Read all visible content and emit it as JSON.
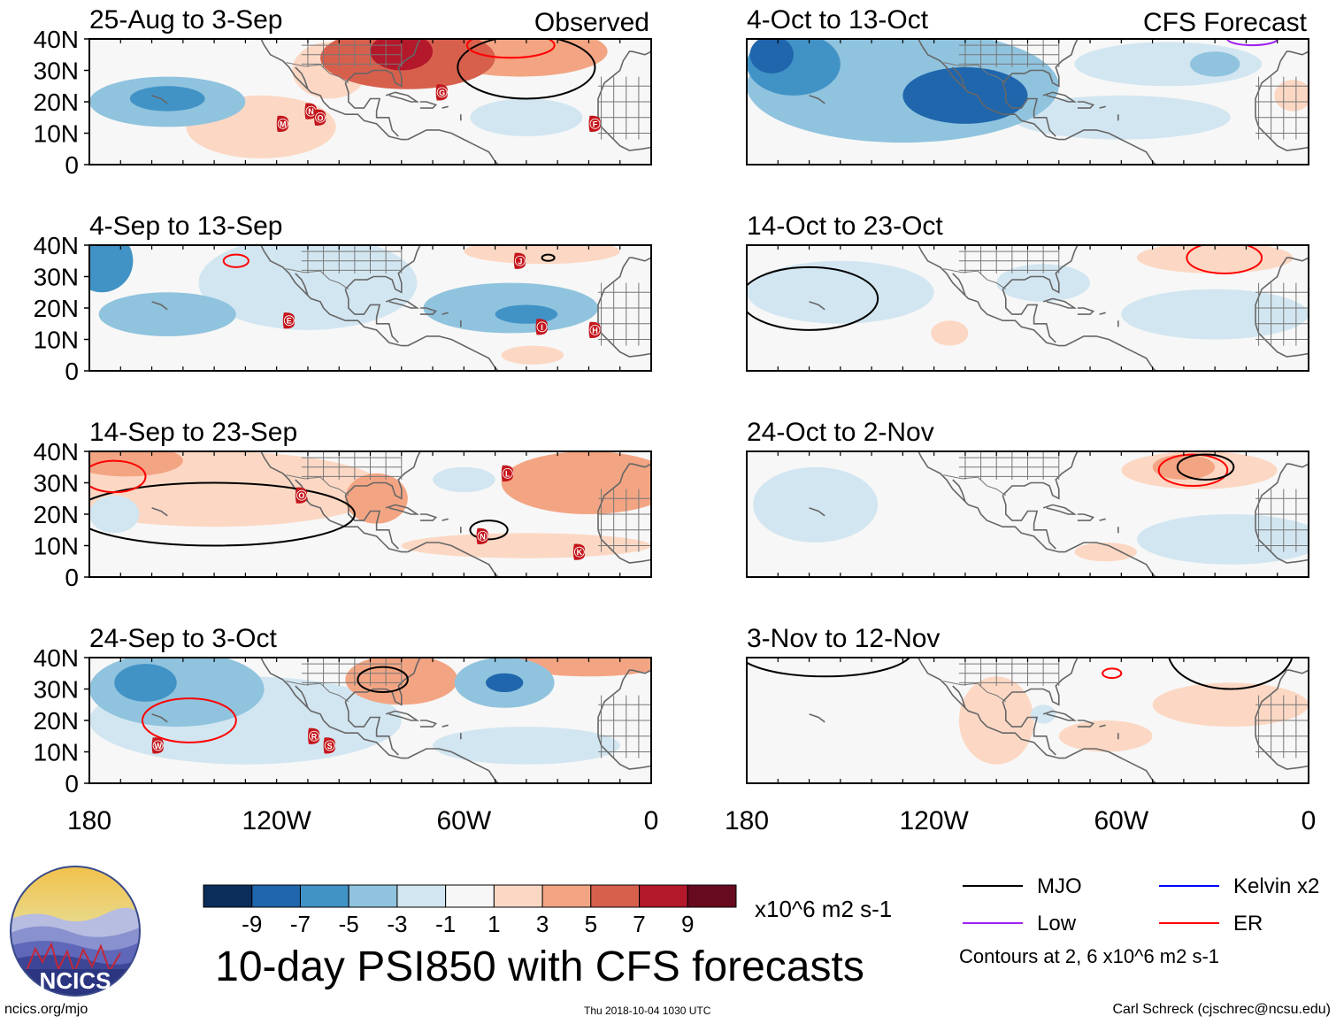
{
  "title": "10-day PSI850 with CFS forecasts",
  "site_url": "ncics.org/mjo",
  "timestamp": "Thu 2018-10-04 1030 UTC",
  "credit": "Carl Schreck (cjschrec@ncsu.edu)",
  "logo_text": "NCICS",
  "column_headers": [
    "Observed",
    "CFS Forecast"
  ],
  "colorbar": {
    "labels": [
      "-9",
      "-7",
      "-5",
      "-3",
      "-1",
      "1",
      "3",
      "5",
      "7",
      "9"
    ],
    "colors": [
      "#0b2d5a",
      "#1f66ad",
      "#4193c6",
      "#90c3de",
      "#d2e6f1",
      "#f7f7f7",
      "#fcd8c4",
      "#f3a583",
      "#d7604d",
      "#b3182b",
      "#680a1f"
    ],
    "units": "x10^6 m2 s-1"
  },
  "contour_legend": [
    {
      "label": "MJO",
      "color": "#000000"
    },
    {
      "label": "Kelvin x2",
      "color": "#0000ff"
    },
    {
      "label": "Low",
      "color": "#a020f0"
    },
    {
      "label": "ER",
      "color": "#ff0000"
    }
  ],
  "contour_note": "Contours at 2, 6 x10^6 m2 s-1",
  "chart_data": {
    "type": "heatmap",
    "variable": "10-day mean 850-hPa streamfunction anomaly (PSI850)",
    "units": "x10^6 m2 s-1",
    "x_axis": {
      "ticks": [
        -180,
        -120,
        -60,
        0
      ],
      "labels": [
        "180",
        "120W",
        "60W",
        "0"
      ],
      "range": [
        -180,
        0
      ]
    },
    "y_axis": {
      "ticks": [
        0,
        10,
        20,
        30,
        40
      ],
      "labels": [
        "0",
        "10N",
        "20N",
        "30N",
        "40N"
      ],
      "range": [
        0,
        40
      ]
    },
    "panels": [
      {
        "id": "p1",
        "title": "25-Aug to 3-Sep",
        "header": "Observed",
        "blobs": [
          {
            "lon": -155,
            "lat": 20,
            "rx": 25,
            "ry": 8,
            "v": -5
          },
          {
            "lon": -155,
            "lat": 21,
            "rx": 12,
            "ry": 4,
            "v": -6
          },
          {
            "lon": -78,
            "lat": 34,
            "rx": 28,
            "ry": 10,
            "v": 5
          },
          {
            "lon": -80,
            "lat": 36,
            "rx": 10,
            "ry": 6,
            "v": 7
          },
          {
            "lon": -42,
            "lat": 36,
            "rx": 28,
            "ry": 8,
            "v": 3
          },
          {
            "lon": -125,
            "lat": 12,
            "rx": 24,
            "ry": 10,
            "v": 2
          },
          {
            "lon": -103,
            "lat": 30,
            "rx": 12,
            "ry": 9,
            "v": 2
          },
          {
            "lon": -40,
            "lat": 15,
            "rx": 18,
            "ry": 6,
            "v": -2
          }
        ],
        "contours": [
          {
            "color": "#000000",
            "lon": -40,
            "lat": 31,
            "rx": 22,
            "ry": 10
          },
          {
            "color": "#ff0000",
            "lon": -45,
            "lat": 38,
            "rx": 14,
            "ry": 4
          }
        ],
        "storms": [
          {
            "letter": "M",
            "lon": -118,
            "lat": 13
          },
          {
            "letter": "N",
            "lon": -109,
            "lat": 17
          },
          {
            "letter": "O",
            "lon": -106,
            "lat": 15
          },
          {
            "letter": "G",
            "lon": -67,
            "lat": 23
          },
          {
            "letter": "F",
            "lon": -18,
            "lat": 13
          }
        ]
      },
      {
        "id": "p2",
        "title": "4-Sep to 13-Sep",
        "header": "",
        "blobs": [
          {
            "lon": -176,
            "lat": 35,
            "rx": 10,
            "ry": 10,
            "v": -7
          },
          {
            "lon": -155,
            "lat": 18,
            "rx": 22,
            "ry": 7,
            "v": -5
          },
          {
            "lon": -45,
            "lat": 20,
            "rx": 28,
            "ry": 8,
            "v": -5
          },
          {
            "lon": -40,
            "lat": 18,
            "rx": 10,
            "ry": 3,
            "v": -6
          },
          {
            "lon": -110,
            "lat": 28,
            "rx": 35,
            "ry": 15,
            "v": -2
          },
          {
            "lon": -35,
            "lat": 38,
            "rx": 25,
            "ry": 4,
            "v": 2
          },
          {
            "lon": -38,
            "lat": 5,
            "rx": 10,
            "ry": 3,
            "v": 2
          }
        ],
        "contours": [
          {
            "color": "#ff0000",
            "lon": -133,
            "lat": 35,
            "rx": 4,
            "ry": 2
          },
          {
            "color": "#000000",
            "lon": -33,
            "lat": 36,
            "rx": 2,
            "ry": 1
          }
        ],
        "storms": [
          {
            "letter": "J",
            "lon": -42,
            "lat": 35
          },
          {
            "letter": "I",
            "lon": -35,
            "lat": 14
          },
          {
            "letter": "H",
            "lon": -18,
            "lat": 13
          },
          {
            "letter": "E",
            "lon": -116,
            "lat": 16
          }
        ]
      },
      {
        "id": "p3",
        "title": "14-Sep to 23-Sep",
        "header": "",
        "blobs": [
          {
            "lon": -140,
            "lat": 28,
            "rx": 55,
            "ry": 12,
            "v": 2
          },
          {
            "lon": -88,
            "lat": 25,
            "rx": 10,
            "ry": 8,
            "v": 3
          },
          {
            "lon": -168,
            "lat": 37,
            "rx": 18,
            "ry": 5,
            "v": 4
          },
          {
            "lon": -20,
            "lat": 30,
            "rx": 28,
            "ry": 10,
            "v": 3
          },
          {
            "lon": -40,
            "lat": 10,
            "rx": 40,
            "ry": 4,
            "v": 2
          },
          {
            "lon": -172,
            "lat": 20,
            "rx": 8,
            "ry": 6,
            "v": -2
          },
          {
            "lon": -60,
            "lat": 31,
            "rx": 10,
            "ry": 4,
            "v": -2
          }
        ],
        "contours": [
          {
            "color": "#000000",
            "lon": -140,
            "lat": 20,
            "rx": 45,
            "ry": 10
          },
          {
            "color": "#000000",
            "lon": -52,
            "lat": 15,
            "rx": 6,
            "ry": 3
          },
          {
            "color": "#ff0000",
            "lon": -172,
            "lat": 32,
            "rx": 10,
            "ry": 5
          }
        ],
        "storms": [
          {
            "letter": "O",
            "lon": -112,
            "lat": 26
          },
          {
            "letter": "L",
            "lon": -46,
            "lat": 33
          },
          {
            "letter": "N",
            "lon": -54,
            "lat": 13
          },
          {
            "letter": "K",
            "lon": -23,
            "lat": 8
          }
        ]
      },
      {
        "id": "p4",
        "title": "24-Sep to 3-Oct",
        "header": "",
        "blobs": [
          {
            "lon": -152,
            "lat": 30,
            "rx": 28,
            "ry": 12,
            "v": -5
          },
          {
            "lon": -162,
            "lat": 32,
            "rx": 10,
            "ry": 6,
            "v": -7
          },
          {
            "lon": -130,
            "lat": 20,
            "rx": 50,
            "ry": 14,
            "v": -2
          },
          {
            "lon": -47,
            "lat": 32,
            "rx": 16,
            "ry": 8,
            "v": -5
          },
          {
            "lon": -47,
            "lat": 32,
            "rx": 6,
            "ry": 3,
            "v": -9
          },
          {
            "lon": -80,
            "lat": 33,
            "rx": 18,
            "ry": 8,
            "v": 3
          },
          {
            "lon": -20,
            "lat": 38,
            "rx": 24,
            "ry": 4,
            "v": 3
          },
          {
            "lon": -40,
            "lat": 12,
            "rx": 30,
            "ry": 6,
            "v": -2
          }
        ],
        "contours": [
          {
            "color": "#ff0000",
            "lon": -148,
            "lat": 20,
            "rx": 15,
            "ry": 7
          },
          {
            "color": "#000000",
            "lon": -86,
            "lat": 33,
            "rx": 8,
            "ry": 4
          }
        ],
        "storms": [
          {
            "letter": "W",
            "lon": -158,
            "lat": 12
          },
          {
            "letter": "R",
            "lon": -108,
            "lat": 15
          },
          {
            "letter": "S",
            "lon": -103,
            "lat": 12
          }
        ]
      },
      {
        "id": "f1",
        "title": "4-Oct to 13-Oct",
        "header": "CFS Forecast",
        "blobs": [
          {
            "lon": -130,
            "lat": 25,
            "rx": 50,
            "ry": 18,
            "v": -5
          },
          {
            "lon": -165,
            "lat": 32,
            "rx": 15,
            "ry": 10,
            "v": -7
          },
          {
            "lon": -172,
            "lat": 35,
            "rx": 7,
            "ry": 6,
            "v": -9
          },
          {
            "lon": -110,
            "lat": 22,
            "rx": 20,
            "ry": 9,
            "v": -9
          },
          {
            "lon": -45,
            "lat": 32,
            "rx": 30,
            "ry": 7,
            "v": -3
          },
          {
            "lon": -30,
            "lat": 32,
            "rx": 8,
            "ry": 4,
            "v": -5
          },
          {
            "lon": -60,
            "lat": 15,
            "rx": 35,
            "ry": 7,
            "v": -2
          },
          {
            "lon": -5,
            "lat": 22,
            "rx": 6,
            "ry": 5,
            "v": 2
          }
        ],
        "contours": [
          {
            "color": "#a020f0",
            "lon": -18,
            "lat": 40,
            "rx": 8,
            "ry": 2
          }
        ],
        "storms": []
      },
      {
        "id": "f2",
        "title": "14-Oct to 23-Oct",
        "header": "",
        "blobs": [
          {
            "lon": -150,
            "lat": 25,
            "rx": 30,
            "ry": 10,
            "v": -2
          },
          {
            "lon": -30,
            "lat": 18,
            "rx": 30,
            "ry": 8,
            "v": -2
          },
          {
            "lon": -30,
            "lat": 36,
            "rx": 25,
            "ry": 5,
            "v": 2
          },
          {
            "lon": -115,
            "lat": 12,
            "rx": 6,
            "ry": 4,
            "v": 2
          },
          {
            "lon": -85,
            "lat": 28,
            "rx": 15,
            "ry": 6,
            "v": -2
          }
        ],
        "contours": [
          {
            "color": "#000000",
            "lon": -160,
            "lat": 23,
            "rx": 22,
            "ry": 10
          },
          {
            "color": "#ff0000",
            "lon": -27,
            "lat": 36,
            "rx": 12,
            "ry": 5
          }
        ],
        "storms": []
      },
      {
        "id": "f3",
        "title": "24-Oct to 2-Nov",
        "header": "",
        "blobs": [
          {
            "lon": -158,
            "lat": 23,
            "rx": 20,
            "ry": 12,
            "v": -2
          },
          {
            "lon": -25,
            "lat": 12,
            "rx": 30,
            "ry": 8,
            "v": -2
          },
          {
            "lon": -35,
            "lat": 34,
            "rx": 25,
            "ry": 6,
            "v": 2
          },
          {
            "lon": -40,
            "lat": 35,
            "rx": 10,
            "ry": 4,
            "v": 4
          },
          {
            "lon": -65,
            "lat": 8,
            "rx": 10,
            "ry": 3,
            "v": 2
          }
        ],
        "contours": [
          {
            "color": "#ff0000",
            "lon": -37,
            "lat": 34,
            "rx": 11,
            "ry": 5
          },
          {
            "color": "#000000",
            "lon": -33,
            "lat": 35,
            "rx": 9,
            "ry": 4
          }
        ],
        "storms": []
      },
      {
        "id": "f4",
        "title": "3-Nov to 12-Nov",
        "header": "",
        "blobs": [
          {
            "lon": -100,
            "lat": 20,
            "rx": 12,
            "ry": 14,
            "v": 2
          },
          {
            "lon": -25,
            "lat": 25,
            "rx": 25,
            "ry": 7,
            "v": 2
          },
          {
            "lon": -65,
            "lat": 15,
            "rx": 15,
            "ry": 5,
            "v": 2
          },
          {
            "lon": -85,
            "lat": 22,
            "rx": 4,
            "ry": 3,
            "v": -2
          }
        ],
        "contours": [
          {
            "color": "#000000",
            "lon": -155,
            "lat": 42,
            "rx": 28,
            "ry": 8
          },
          {
            "color": "#000000",
            "lon": -25,
            "lat": 42,
            "rx": 20,
            "ry": 12
          },
          {
            "color": "#ff0000",
            "lon": -63,
            "lat": 35,
            "rx": 3,
            "ry": 1.5
          }
        ],
        "storms": []
      }
    ]
  }
}
